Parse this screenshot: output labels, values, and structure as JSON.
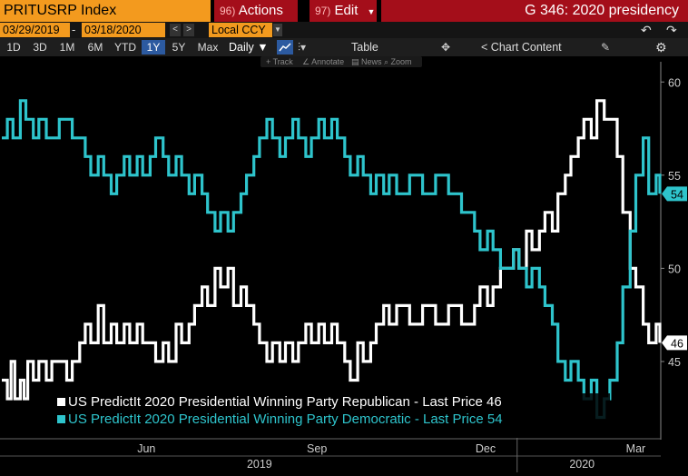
{
  "header": {
    "ticker": "PRITUSRP Index",
    "actions_num": "96)",
    "actions_label": "Actions",
    "edit_num": "97)",
    "edit_label": "Edit",
    "page_title": "G 346: 2020 presidency"
  },
  "date_row": {
    "start_date": "03/29/2019",
    "end_date": "03/18/2020",
    "currency": "Local CCY"
  },
  "toolbar": {
    "ranges": [
      "1D",
      "3D",
      "1M",
      "6M",
      "YTD",
      "1Y",
      "5Y",
      "Max"
    ],
    "active_range": "1Y",
    "frequency": "Daily",
    "table_label": "Table",
    "chart_content_label": "Chart Content"
  },
  "subtools": [
    "Track",
    "Annotate",
    "News",
    "Zoom"
  ],
  "icons": {
    "line_chart": "line-chart-icon",
    "bar_chart": "bar-chart-icon",
    "move": "move-icon",
    "edit": "pencil-icon",
    "settings": "gear-icon",
    "undo": "undo-icon",
    "redo": "redo-icon"
  },
  "colors": {
    "ticker_bg": "#f39a1e",
    "menu_bg": "#a40e1a",
    "republican": "#ffffff",
    "democratic": "#2ec4cc",
    "active": "#2c5aa0"
  },
  "chart_data": {
    "type": "line",
    "x_ticks": [
      "Jun",
      "Sep",
      "Dec",
      "Mar"
    ],
    "x_years": [
      "2019",
      "2020"
    ],
    "y_ticks": [
      45,
      50,
      55,
      60
    ],
    "ylim": [
      41,
      60.5
    ],
    "xlim": [
      "2019-03-29",
      "2020-03-18"
    ],
    "grid": false,
    "legend_position": "bottom-left",
    "series": [
      {
        "name": "US PredictIt 2020 Presidential Winning Party Republican - Last Price",
        "last_price": "46",
        "color": "#ffffff",
        "points": [
          [
            "2019-03-29",
            44
          ],
          [
            "2019-04-01",
            43
          ],
          [
            "2019-04-03",
            45
          ],
          [
            "2019-04-05",
            43
          ],
          [
            "2019-04-08",
            44
          ],
          [
            "2019-04-10",
            43
          ],
          [
            "2019-04-12",
            45
          ],
          [
            "2019-04-15",
            44
          ],
          [
            "2019-04-18",
            45
          ],
          [
            "2019-04-22",
            44
          ],
          [
            "2019-04-25",
            45
          ],
          [
            "2019-05-01",
            45
          ],
          [
            "2019-05-03",
            44
          ],
          [
            "2019-05-06",
            45
          ],
          [
            "2019-05-10",
            46
          ],
          [
            "2019-05-13",
            47
          ],
          [
            "2019-05-16",
            46
          ],
          [
            "2019-05-20",
            48
          ],
          [
            "2019-05-23",
            46
          ],
          [
            "2019-05-27",
            47
          ],
          [
            "2019-05-30",
            46
          ],
          [
            "2019-06-03",
            47
          ],
          [
            "2019-06-06",
            46
          ],
          [
            "2019-06-10",
            47
          ],
          [
            "2019-06-13",
            46
          ],
          [
            "2019-06-17",
            46
          ],
          [
            "2019-06-20",
            45
          ],
          [
            "2019-06-24",
            46
          ],
          [
            "2019-06-27",
            45
          ],
          [
            "2019-07-01",
            47
          ],
          [
            "2019-07-04",
            46
          ],
          [
            "2019-07-08",
            47
          ],
          [
            "2019-07-11",
            48
          ],
          [
            "2019-07-15",
            49
          ],
          [
            "2019-07-18",
            48
          ],
          [
            "2019-07-22",
            50
          ],
          [
            "2019-07-25",
            49
          ],
          [
            "2019-07-29",
            50
          ],
          [
            "2019-08-01",
            48
          ],
          [
            "2019-08-05",
            49
          ],
          [
            "2019-08-08",
            48
          ],
          [
            "2019-08-12",
            47
          ],
          [
            "2019-08-15",
            46
          ],
          [
            "2019-08-19",
            45
          ],
          [
            "2019-08-22",
            46
          ],
          [
            "2019-08-26",
            45
          ],
          [
            "2019-08-29",
            46
          ],
          [
            "2019-09-02",
            45
          ],
          [
            "2019-09-05",
            46
          ],
          [
            "2019-09-09",
            47
          ],
          [
            "2019-09-12",
            46
          ],
          [
            "2019-09-16",
            47
          ],
          [
            "2019-09-19",
            46
          ],
          [
            "2019-09-23",
            47
          ],
          [
            "2019-09-26",
            46
          ],
          [
            "2019-09-30",
            45
          ],
          [
            "2019-10-03",
            44
          ],
          [
            "2019-10-07",
            46
          ],
          [
            "2019-10-10",
            45
          ],
          [
            "2019-10-14",
            46
          ],
          [
            "2019-10-17",
            47
          ],
          [
            "2019-10-21",
            48
          ],
          [
            "2019-10-24",
            47
          ],
          [
            "2019-10-28",
            48
          ],
          [
            "2019-11-04",
            47
          ],
          [
            "2019-11-11",
            48
          ],
          [
            "2019-11-18",
            47
          ],
          [
            "2019-11-25",
            48
          ],
          [
            "2019-12-02",
            47
          ],
          [
            "2019-12-09",
            48
          ],
          [
            "2019-12-12",
            49
          ],
          [
            "2019-12-16",
            48
          ],
          [
            "2019-12-19",
            49
          ],
          [
            "2019-12-23",
            50
          ],
          [
            "2019-12-30",
            51
          ],
          [
            "2020-01-02",
            50
          ],
          [
            "2020-01-06",
            52
          ],
          [
            "2020-01-09",
            51
          ],
          [
            "2020-01-13",
            52
          ],
          [
            "2020-01-16",
            53
          ],
          [
            "2020-01-20",
            52
          ],
          [
            "2020-01-23",
            54
          ],
          [
            "2020-01-27",
            55
          ],
          [
            "2020-01-30",
            56
          ],
          [
            "2020-02-03",
            57
          ],
          [
            "2020-02-06",
            58
          ],
          [
            "2020-02-10",
            57
          ],
          [
            "2020-02-13",
            59
          ],
          [
            "2020-02-17",
            58
          ],
          [
            "2020-02-20",
            58
          ],
          [
            "2020-02-24",
            56
          ],
          [
            "2020-02-27",
            53
          ],
          [
            "2020-03-02",
            50
          ],
          [
            "2020-03-05",
            49
          ],
          [
            "2020-03-09",
            47
          ],
          [
            "2020-03-12",
            46
          ],
          [
            "2020-03-16",
            47
          ],
          [
            "2020-03-18",
            46
          ]
        ]
      },
      {
        "name": "US PredictIt 2020 Presidential Winning Party Democratic - Last Price",
        "last_price": "54",
        "color": "#2ec4cc",
        "points": [
          [
            "2019-03-29",
            57
          ],
          [
            "2019-04-01",
            58
          ],
          [
            "2019-04-04",
            57
          ],
          [
            "2019-04-08",
            59
          ],
          [
            "2019-04-11",
            58
          ],
          [
            "2019-04-15",
            57
          ],
          [
            "2019-04-18",
            58
          ],
          [
            "2019-04-22",
            57
          ],
          [
            "2019-04-29",
            58
          ],
          [
            "2019-05-06",
            57
          ],
          [
            "2019-05-13",
            56
          ],
          [
            "2019-05-16",
            55
          ],
          [
            "2019-05-20",
            56
          ],
          [
            "2019-05-23",
            55
          ],
          [
            "2019-05-27",
            54
          ],
          [
            "2019-05-30",
            55
          ],
          [
            "2019-06-03",
            56
          ],
          [
            "2019-06-06",
            55
          ],
          [
            "2019-06-10",
            56
          ],
          [
            "2019-06-13",
            55
          ],
          [
            "2019-06-17",
            56
          ],
          [
            "2019-06-20",
            57
          ],
          [
            "2019-06-24",
            56
          ],
          [
            "2019-06-27",
            55
          ],
          [
            "2019-07-01",
            56
          ],
          [
            "2019-07-04",
            55
          ],
          [
            "2019-07-08",
            54
          ],
          [
            "2019-07-11",
            55
          ],
          [
            "2019-07-15",
            54
          ],
          [
            "2019-07-18",
            53
          ],
          [
            "2019-07-22",
            52
          ],
          [
            "2019-07-25",
            53
          ],
          [
            "2019-07-29",
            52
          ],
          [
            "2019-08-01",
            53
          ],
          [
            "2019-08-05",
            54
          ],
          [
            "2019-08-08",
            55
          ],
          [
            "2019-08-12",
            56
          ],
          [
            "2019-08-15",
            57
          ],
          [
            "2019-08-19",
            58
          ],
          [
            "2019-08-22",
            57
          ],
          [
            "2019-08-26",
            56
          ],
          [
            "2019-08-29",
            57
          ],
          [
            "2019-09-02",
            58
          ],
          [
            "2019-09-05",
            57
          ],
          [
            "2019-09-09",
            56
          ],
          [
            "2019-09-12",
            57
          ],
          [
            "2019-09-16",
            58
          ],
          [
            "2019-09-19",
            57
          ],
          [
            "2019-09-23",
            58
          ],
          [
            "2019-09-26",
            57
          ],
          [
            "2019-09-30",
            56
          ],
          [
            "2019-10-03",
            55
          ],
          [
            "2019-10-07",
            56
          ],
          [
            "2019-10-10",
            55
          ],
          [
            "2019-10-14",
            54
          ],
          [
            "2019-10-17",
            55
          ],
          [
            "2019-10-21",
            54
          ],
          [
            "2019-10-24",
            55
          ],
          [
            "2019-10-28",
            54
          ],
          [
            "2019-11-04",
            55
          ],
          [
            "2019-11-11",
            54
          ],
          [
            "2019-11-18",
            55
          ],
          [
            "2019-11-25",
            54
          ],
          [
            "2019-12-02",
            53
          ],
          [
            "2019-12-09",
            52
          ],
          [
            "2019-12-12",
            51
          ],
          [
            "2019-12-16",
            52
          ],
          [
            "2019-12-19",
            51
          ],
          [
            "2019-12-23",
            50
          ],
          [
            "2019-12-30",
            51
          ],
          [
            "2020-01-02",
            50
          ],
          [
            "2020-01-06",
            49
          ],
          [
            "2020-01-09",
            50
          ],
          [
            "2020-01-13",
            49
          ],
          [
            "2020-01-16",
            48
          ],
          [
            "2020-01-20",
            47
          ],
          [
            "2020-01-23",
            45
          ],
          [
            "2020-01-27",
            44
          ],
          [
            "2020-01-30",
            45
          ],
          [
            "2020-02-03",
            44
          ],
          [
            "2020-02-06",
            43
          ],
          [
            "2020-02-10",
            44
          ],
          [
            "2020-02-13",
            42
          ],
          [
            "2020-02-17",
            43
          ],
          [
            "2020-02-20",
            44
          ],
          [
            "2020-02-24",
            46
          ],
          [
            "2020-02-27",
            49
          ],
          [
            "2020-03-02",
            52
          ],
          [
            "2020-03-05",
            55
          ],
          [
            "2020-03-09",
            57
          ],
          [
            "2020-03-12",
            54
          ],
          [
            "2020-03-16",
            55
          ],
          [
            "2020-03-18",
            54
          ]
        ]
      }
    ]
  }
}
